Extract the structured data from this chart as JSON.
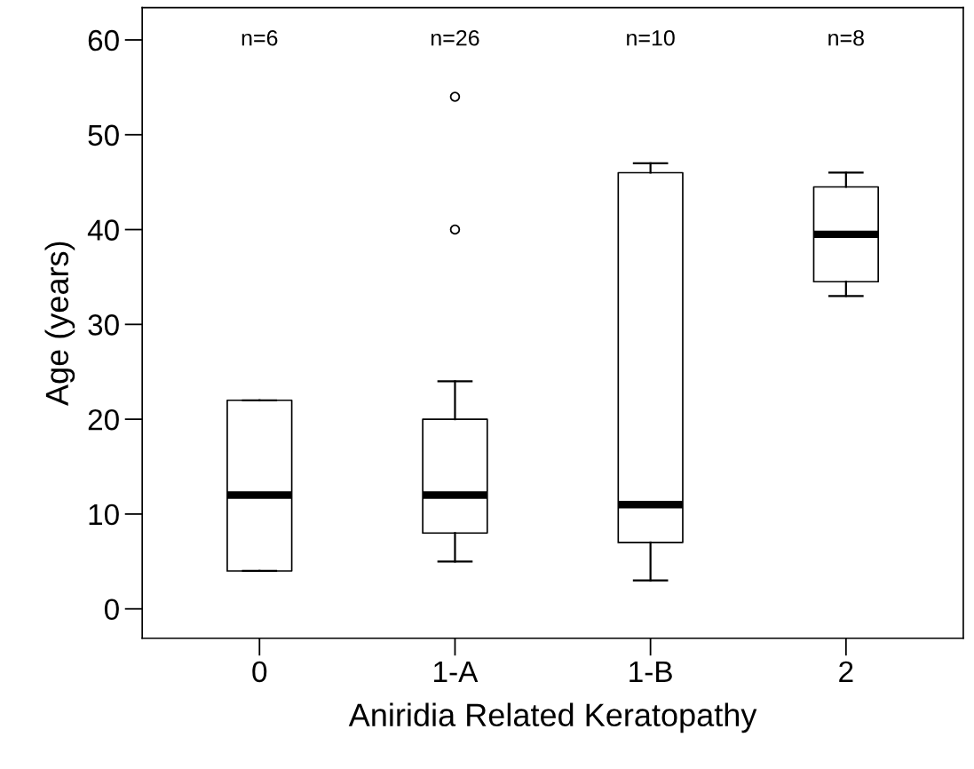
{
  "chart_data": {
    "type": "box",
    "xlabel": "Aniridia Related Keratopathy",
    "ylabel": "Age (years)",
    "categories": [
      "0",
      "1-A",
      "1-B",
      "2"
    ],
    "boxes": [
      {
        "low": 4,
        "q1": 4,
        "median": 12,
        "q3": 22,
        "high": 22
      },
      {
        "low": 5,
        "q1": 8,
        "median": 12,
        "q3": 20,
        "high": 24,
        "outliers": [
          40,
          54
        ]
      },
      {
        "low": 3,
        "q1": 7,
        "median": 11,
        "q3": 46,
        "high": 47
      },
      {
        "low": 33,
        "q1": 34.5,
        "median": 39.5,
        "q3": 44.5,
        "high": 46
      }
    ],
    "annotations": [
      "n=6",
      "n=26",
      "n=10",
      "n=8"
    ],
    "ylim": [
      -3.1,
      63.4
    ],
    "yticks": [
      0,
      10,
      20,
      30,
      40,
      50,
      60
    ],
    "grid": false
  }
}
